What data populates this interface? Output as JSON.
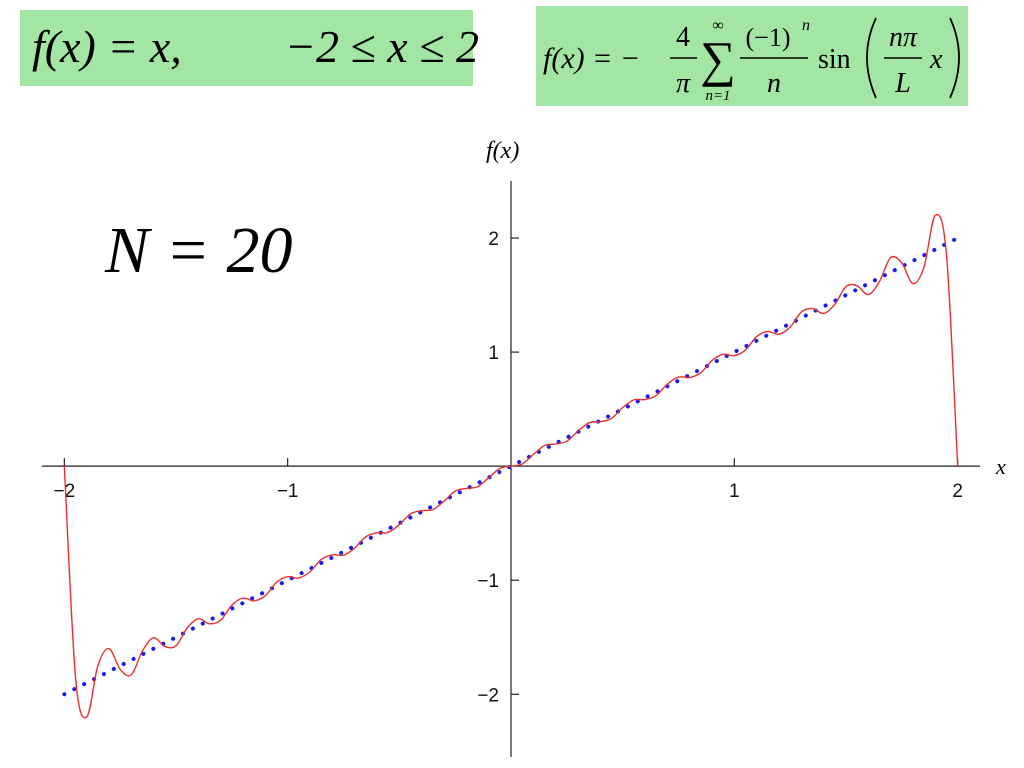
{
  "formulas": {
    "definition": {
      "function": "f(x) = x,",
      "domain": "−2 ≤ x ≤ 2"
    },
    "series": {
      "lhs": "f(x) = −",
      "coef_num": "4",
      "coef_den": "π",
      "sum_upper": "∞",
      "sum_symbol": "∑",
      "sum_lower": "n=1",
      "term_num": "(−1)",
      "term_exp": "n",
      "term_den": "n",
      "func": "sin",
      "arg_num": "nπ",
      "arg_den": "L",
      "arg_var": "x"
    }
  },
  "chart_data": {
    "type": "line",
    "annotation": "N = 20",
    "x_label": "x",
    "y_label": "f(x)",
    "x": [
      -2,
      -1.95,
      -1.9,
      -1.85,
      -1.8,
      -1.75,
      -1.7,
      -1.65,
      -1.6,
      -1.55,
      -1.5,
      -1.45,
      -1.4,
      -1.35,
      -1.3,
      -1.25,
      -1.2,
      -1.15,
      -1.1,
      -1.05,
      -1,
      -0.95,
      -0.9,
      -0.85,
      -0.8,
      -0.75,
      -0.7,
      -0.65,
      -0.6,
      -0.55,
      -0.5,
      -0.45,
      -0.4,
      -0.35,
      -0.3,
      -0.25,
      -0.2,
      -0.15,
      -0.1,
      -0.05,
      0,
      0.05,
      0.1,
      0.15,
      0.2,
      0.25,
      0.3,
      0.35,
      0.4,
      0.45,
      0.5,
      0.55,
      0.6,
      0.65,
      0.7,
      0.75,
      0.8,
      0.85,
      0.9,
      0.95,
      1,
      1.05,
      1.1,
      1.15,
      1.2,
      1.25,
      1.3,
      1.35,
      1.4,
      1.45,
      1.5,
      1.55,
      1.6,
      1.65,
      1.7,
      1.75,
      1.8,
      1.85,
      1.9,
      1.95,
      2
    ],
    "series": [
      {
        "color": "#e8302e",
        "style": "solid",
        "values": [
          0,
          -1.85,
          -2.2,
          -1.75,
          -1.6,
          -1.781,
          -1.829,
          -1.619,
          -1.504,
          -1.581,
          -1.575,
          -1.419,
          -1.339,
          -1.382,
          -1.351,
          -1.219,
          -1.157,
          -1.181,
          -1.136,
          -1.019,
          -0.969,
          -0.981,
          -0.926,
          -0.819,
          -0.777,
          -0.781,
          -0.719,
          -0.619,
          -0.584,
          -0.581,
          -0.513,
          -0.419,
          -0.39,
          -0.381,
          -0.307,
          -0.219,
          -0.195,
          -0.181,
          -0.102,
          -0.019,
          0,
          0.019,
          0.102,
          0.181,
          0.195,
          0.219,
          0.307,
          0.381,
          0.39,
          0.419,
          0.513,
          0.581,
          0.584,
          0.619,
          0.719,
          0.781,
          0.777,
          0.819,
          0.926,
          0.981,
          0.969,
          1.019,
          1.136,
          1.181,
          1.157,
          1.219,
          1.351,
          1.382,
          1.339,
          1.419,
          1.575,
          1.581,
          1.504,
          1.619,
          1.829,
          1.781,
          1.6,
          1.75,
          2.2,
          1.85,
          0
        ]
      },
      {
        "color": "#1a1aee",
        "style": "dotted",
        "values": [
          -2,
          -1.95,
          -1.9,
          -1.85,
          -1.8,
          -1.75,
          -1.7,
          -1.65,
          -1.6,
          -1.55,
          -1.5,
          -1.45,
          -1.4,
          -1.35,
          -1.3,
          -1.25,
          -1.2,
          -1.15,
          -1.1,
          -1.05,
          -1,
          -0.95,
          -0.9,
          -0.85,
          -0.8,
          -0.75,
          -0.7,
          -0.65,
          -0.6,
          -0.55,
          -0.5,
          -0.45,
          -0.4,
          -0.35,
          -0.3,
          -0.25,
          -0.2,
          -0.15,
          -0.1,
          -0.05,
          0,
          0.05,
          0.1,
          0.15,
          0.2,
          0.25,
          0.3,
          0.35,
          0.4,
          0.45,
          0.5,
          0.55,
          0.6,
          0.65,
          0.7,
          0.75,
          0.8,
          0.85,
          0.9,
          0.95,
          1,
          1.05,
          1.1,
          1.15,
          1.2,
          1.25,
          1.3,
          1.35,
          1.4,
          1.45,
          1.5,
          1.55,
          1.6,
          1.65,
          1.7,
          1.75,
          1.8,
          1.85,
          1.9,
          1.95,
          2
        ]
      }
    ],
    "xlim": [
      -2.1,
      2.1
    ],
    "ylim": [
      -2.55,
      2.5
    ],
    "xticks": [
      {
        "value": -2,
        "label": "−2"
      },
      {
        "value": -1,
        "label": "−1"
      },
      1,
      2
    ],
    "yticks": [
      {
        "value": -2,
        "label": "−2"
      },
      {
        "value": -1,
        "label": "−1"
      },
      1,
      2
    ]
  }
}
